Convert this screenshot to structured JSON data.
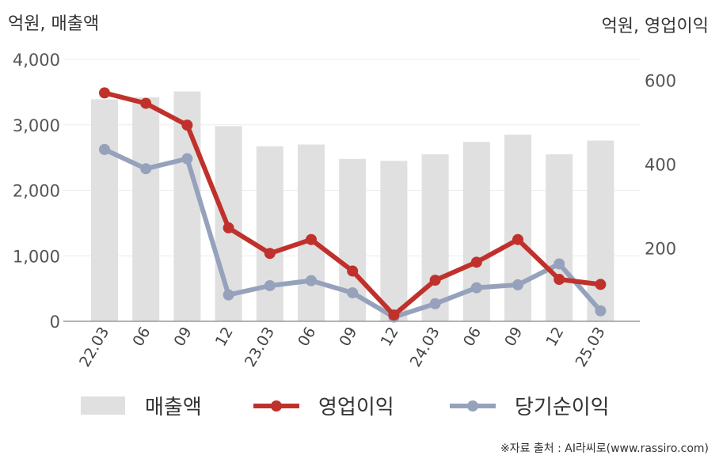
{
  "chart_data": {
    "type": "bar+line",
    "categories": [
      "22.03",
      "06",
      "09",
      "12",
      "23.03",
      "06",
      "09",
      "12",
      "24.03",
      "06",
      "09",
      "12",
      "25.03"
    ],
    "left_axis": {
      "unit_label": "억원, 매출액",
      "ylim": [
        0,
        4000
      ],
      "ticks": [
        0,
        1000,
        2000,
        3000,
        4000
      ],
      "tick_labels": [
        "0",
        "1,000",
        "2,000",
        "3,000",
        "4,000"
      ]
    },
    "right_axis": {
      "unit_label": "억원, 영업이익",
      "ylim": [
        25,
        650
      ],
      "ticks": [
        200,
        400,
        600
      ],
      "tick_labels": [
        "200",
        "400",
        "600"
      ]
    },
    "series": [
      {
        "name": "매출액",
        "kind": "bar",
        "axis": "left",
        "color": "#e0e0e0",
        "values": [
          3390,
          3420,
          3510,
          2980,
          2670,
          2700,
          2480,
          2450,
          2550,
          2740,
          2850,
          2550,
          2760
        ]
      },
      {
        "name": "영업이익",
        "kind": "line",
        "axis": "right",
        "color": "#c0312c",
        "values": [
          570,
          545,
          493,
          248,
          187,
          220,
          145,
          40,
          123,
          166,
          220,
          125,
          113
        ]
      },
      {
        "name": "당기순이익",
        "kind": "line",
        "axis": "right",
        "color": "#96a2bc",
        "values": [
          435,
          389,
          413,
          88,
          110,
          122,
          93,
          35,
          67,
          105,
          112,
          162,
          50
        ]
      }
    ],
    "grid": true,
    "legend_position": "bottom"
  },
  "source_note": "※자료 출처 : AI라씨로(www.rassiro.com)"
}
